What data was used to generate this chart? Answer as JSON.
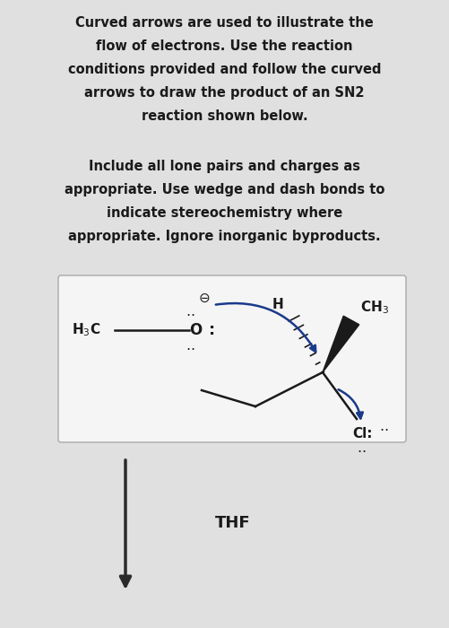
{
  "bg_color": "#e0e0e0",
  "box_bg": "#f2f2f2",
  "text_color": "#1a1a1a",
  "title_lines": [
    "Curved arrows are used to illustrate the",
    "flow of electrons. Use the reaction",
    "conditions provided and follow the curved",
    "arrows to draw the product of an SN2",
    "reaction shown below."
  ],
  "subtitle_lines": [
    "Include all lone pairs and charges as",
    "appropriate. Use wedge and dash bonds to",
    "indicate stereochemistry where",
    "appropriate. Ignore inorganic byproducts."
  ],
  "thf_label": "THF",
  "arrow_color": "#2a2a2a",
  "curved_arrow_color": "#1a3a8a",
  "figsize": [
    5.01,
    7.0
  ],
  "dpi": 100
}
